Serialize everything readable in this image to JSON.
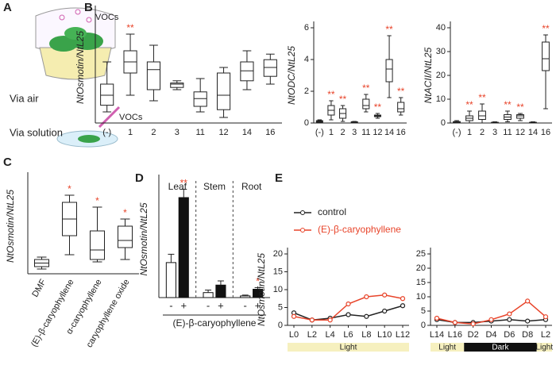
{
  "panel_labels": [
    "A",
    "B",
    "C",
    "D",
    "E"
  ],
  "panel_a": {
    "top": "Via air",
    "top_tag": "VOCs",
    "bottom": "Via solution",
    "bottom_tag": "VOCs"
  },
  "chart_data": [
    {
      "type": "box",
      "ylabel": "NtOsmotin/NtL25",
      "ylim": [
        0,
        10
      ],
      "categories": [
        "(-)",
        "1",
        "2",
        "3",
        "11",
        "12",
        "14",
        "16"
      ],
      "boxes": [
        {
          "min": 1.0,
          "q1": 1.6,
          "median": 2.5,
          "q3": 3.5,
          "max": 5.5
        },
        {
          "min": 2.5,
          "q1": 4.5,
          "median": 5.5,
          "q3": 6.5,
          "max": 8.0
        },
        {
          "min": 2.0,
          "q1": 3.0,
          "median": 4.8,
          "q3": 5.5,
          "max": 7.0
        },
        {
          "min": 3.0,
          "q1": 3.2,
          "median": 3.5,
          "q3": 3.6,
          "max": 3.8
        },
        {
          "min": 1.0,
          "q1": 1.5,
          "median": 2.2,
          "q3": 2.8,
          "max": 4.0
        },
        {
          "min": 0.5,
          "q1": 1.2,
          "median": 2.5,
          "q3": 4.5,
          "max": 5.0
        },
        {
          "min": 3.0,
          "q1": 3.8,
          "median": 4.7,
          "q3": 5.5,
          "max": 6.5
        },
        {
          "min": 3.5,
          "q1": 4.2,
          "median": 5.0,
          "q3": 5.7,
          "max": 6.2
        }
      ],
      "annotations": [
        {
          "x": "1",
          "text": "**"
        }
      ]
    },
    {
      "type": "box",
      "ylabel": "NtODC/NtL25",
      "ylim": [
        0,
        6
      ],
      "yticks": [
        0,
        2,
        4,
        6
      ],
      "categories": [
        "(-)",
        "1",
        "2",
        "3",
        "11",
        "12",
        "14",
        "16"
      ],
      "boxes": [
        {
          "min": 0,
          "q1": 0.05,
          "median": 0.1,
          "q3": 0.15,
          "max": 0.2
        },
        {
          "min": 0.2,
          "q1": 0.5,
          "median": 0.8,
          "q3": 1.1,
          "max": 1.4
        },
        {
          "min": 0.1,
          "q1": 0.3,
          "median": 0.6,
          "q3": 0.9,
          "max": 1.1
        },
        {
          "min": 0,
          "q1": 0.02,
          "median": 0.05,
          "q3": 0.08,
          "max": 0.1
        },
        {
          "min": 0.7,
          "q1": 0.9,
          "median": 1.1,
          "q3": 1.5,
          "max": 1.8
        },
        {
          "min": 0.3,
          "q1": 0.4,
          "median": 0.45,
          "q3": 0.5,
          "max": 0.6
        },
        {
          "min": 1.6,
          "q1": 2.6,
          "median": 3.4,
          "q3": 4.0,
          "max": 5.5
        },
        {
          "min": 0.5,
          "q1": 0.7,
          "median": 0.9,
          "q3": 1.3,
          "max": 1.6
        }
      ],
      "annotations": [
        {
          "x": "1",
          "text": "**"
        },
        {
          "x": "2",
          "text": "**"
        },
        {
          "x": "11",
          "text": "**"
        },
        {
          "x": "12",
          "text": "**"
        },
        {
          "x": "14",
          "text": "**"
        },
        {
          "x": "16",
          "text": "**"
        }
      ]
    },
    {
      "type": "box",
      "ylabel": "NtACII/NtL25",
      "ylim": [
        0,
        40
      ],
      "yticks": [
        0,
        10,
        20,
        30,
        40
      ],
      "categories": [
        "(-)",
        "1",
        "2",
        "3",
        "11",
        "12",
        "14",
        "16"
      ],
      "boxes": [
        {
          "min": 0,
          "q1": 0.2,
          "median": 0.4,
          "q3": 0.6,
          "max": 1
        },
        {
          "min": 0,
          "q1": 1,
          "median": 2,
          "q3": 3,
          "max": 5
        },
        {
          "min": 0,
          "q1": 1.5,
          "median": 3,
          "q3": 5,
          "max": 8
        },
        {
          "min": 0,
          "q1": 0.1,
          "median": 0.2,
          "q3": 0.3,
          "max": 0.5
        },
        {
          "min": 0.5,
          "q1": 1.5,
          "median": 2.5,
          "q3": 3.5,
          "max": 5
        },
        {
          "min": 1,
          "q1": 2,
          "median": 3,
          "q3": 3.5,
          "max": 4
        },
        {
          "min": 0,
          "q1": 0.1,
          "median": 0.2,
          "q3": 0.3,
          "max": 0.5
        },
        {
          "min": 6,
          "q1": 22,
          "median": 27,
          "q3": 34,
          "max": 37
        }
      ],
      "annotations": [
        {
          "x": "1",
          "text": "**"
        },
        {
          "x": "2",
          "text": "**"
        },
        {
          "x": "11",
          "text": "**"
        },
        {
          "x": "12",
          "text": "**"
        },
        {
          "x": "16",
          "text": "**"
        }
      ]
    },
    {
      "type": "box",
      "ylabel": "NtOsmotin/NtL25",
      "ylim": [
        0,
        4
      ],
      "categories": [
        "DMF",
        "(E)-β-caryophyllene",
        "α-caryophyllene",
        "caryophyllene oxide"
      ],
      "boxes": [
        {
          "min": 0.2,
          "q1": 0.3,
          "median": 0.45,
          "q3": 0.6,
          "max": 0.7
        },
        {
          "min": 0.8,
          "q1": 1.6,
          "median": 2.3,
          "q3": 3.0,
          "max": 3.3
        },
        {
          "min": 0.5,
          "q1": 0.6,
          "median": 1.0,
          "q3": 1.8,
          "max": 2.8
        },
        {
          "min": 0.6,
          "q1": 1.1,
          "median": 1.4,
          "q3": 2.0,
          "max": 2.3
        }
      ],
      "annotations": [
        {
          "x": "(E)-β-caryophyllene",
          "text": "*"
        },
        {
          "x": "α-caryophyllene",
          "text": "*"
        },
        {
          "x": "caryophyllene oxide",
          "text": "*"
        }
      ]
    },
    {
      "type": "bar",
      "ylabel": "NtOsmotin/NtL25",
      "xlabel": "(E)-β-caryophyllene",
      "ylim": [
        0,
        14
      ],
      "categories": [
        "Leaf",
        "Stem",
        "Root"
      ],
      "series": [
        {
          "name": "-",
          "color": "#ffffff",
          "values": [
            4.2,
            0.6,
            0.2
          ],
          "errors": [
            1.0,
            0.3,
            0.1
          ]
        },
        {
          "name": "+",
          "color": "#111111",
          "values": [
            12,
            1.5,
            1.0
          ],
          "errors": [
            1.0,
            0.5,
            0.2
          ]
        }
      ],
      "annotations": [
        {
          "x": "Leaf",
          "series": "+",
          "text": "**"
        },
        {
          "x": "Root",
          "series": "+",
          "text": "*"
        }
      ]
    },
    {
      "type": "line",
      "ylabel": "NtOsmotin/NtL25",
      "ylim": [
        0,
        20
      ],
      "yticks": [
        0,
        5,
        10,
        15,
        20
      ],
      "legend": "top-left",
      "categories": [
        "L0",
        "L2",
        "L4",
        "L6",
        "L8",
        "L10",
        "L12"
      ],
      "series": [
        {
          "name": "control",
          "color": "#222222",
          "values": [
            3.5,
            1.5,
            2,
            3,
            2.5,
            4,
            5.5
          ]
        },
        {
          "name": "(E)-β-caryophyllene",
          "color": "#e8442a",
          "values": [
            2.5,
            1.5,
            1.5,
            6,
            8,
            8.5,
            7.5
          ]
        }
      ],
      "phases": [
        {
          "label": "Light",
          "from": "L0",
          "to": "L12",
          "color": "#f6f0bf"
        }
      ]
    },
    {
      "type": "line",
      "ylim": [
        0,
        25
      ],
      "yticks": [
        0,
        5,
        10,
        15,
        20,
        25
      ],
      "categories": [
        "L14",
        "L16",
        "D2",
        "D4",
        "D6",
        "D8",
        "L2"
      ],
      "series": [
        {
          "name": "control",
          "color": "#222222",
          "values": [
            2,
            1,
            1,
            1.5,
            2,
            1.5,
            2
          ]
        },
        {
          "name": "(E)-β-caryophyllene",
          "color": "#e8442a",
          "values": [
            2.5,
            1,
            0.5,
            2,
            4,
            8.5,
            3
          ]
        }
      ],
      "phases": [
        {
          "label": "Light",
          "from": "L14",
          "to": "L16",
          "color": "#f6f0bf"
        },
        {
          "label": "Dark",
          "from": "D2",
          "to": "D8",
          "color": "#111111"
        },
        {
          "label": "Light",
          "from": "L2",
          "to": "L2",
          "color": "#f6f0bf"
        }
      ]
    }
  ]
}
